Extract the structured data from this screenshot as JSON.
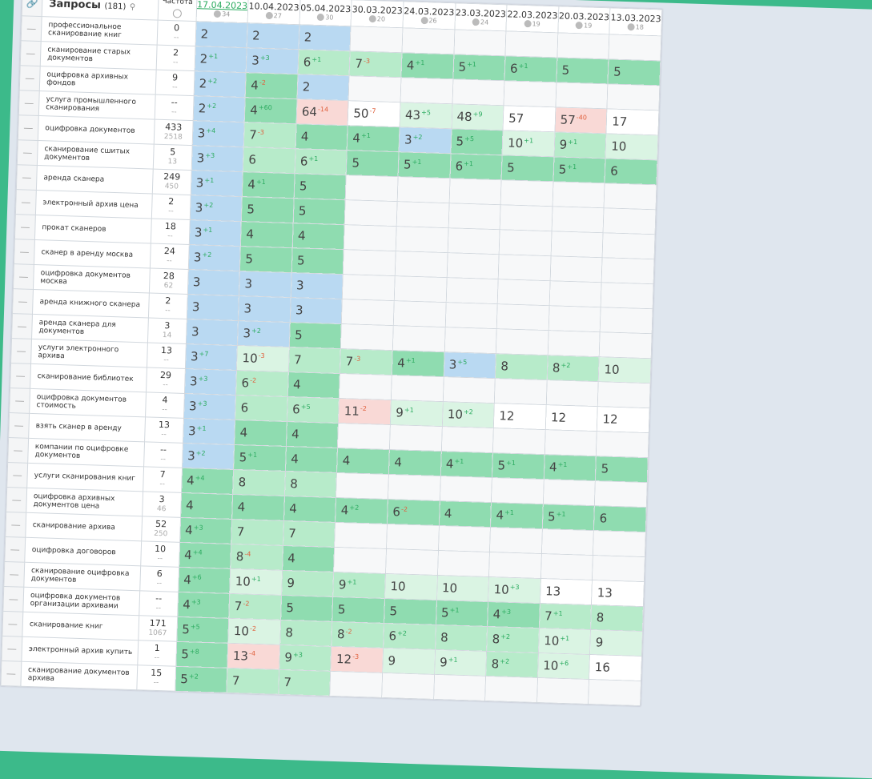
{
  "header": {
    "queries_label": "Запросы",
    "queries_count": "(181)",
    "frequency_label": "Частота",
    "dates": [
      {
        "date": "17.04.2023",
        "count": "34"
      },
      {
        "date": "10.04.2023",
        "count": "27"
      },
      {
        "date": "05.04.2023",
        "count": "30"
      },
      {
        "date": "30.03.2023",
        "count": "20"
      },
      {
        "date": "24.03.2023",
        "count": "26"
      },
      {
        "date": "23.03.2023",
        "count": "24"
      },
      {
        "date": "22.03.2023",
        "count": "19"
      },
      {
        "date": "20.03.2023",
        "count": "19"
      },
      {
        "date": "13.03.2023",
        "count": "18"
      }
    ]
  },
  "colors": {
    "blue": "#b9d9f2",
    "green": "#8fdcb0",
    "light_green": "#b7ebca",
    "pale_green": "#daf4e3",
    "red": "#f9d9d6",
    "delta_up": "#2bab5f",
    "delta_down": "#e0623f"
  },
  "rows": [
    {
      "q": "профессиональное сканирование книг",
      "f": "0",
      "f2": "--",
      "cells": [
        [
          "2",
          "",
          "b"
        ],
        [
          "2",
          "",
          "b"
        ],
        [
          "2",
          "",
          "b"
        ]
      ]
    },
    {
      "q": "сканирование старых документов",
      "f": "2",
      "f2": "--",
      "cells": [
        [
          "2",
          "+1",
          "b"
        ],
        [
          "3",
          "+3",
          "b"
        ],
        [
          "6",
          "+1",
          "l"
        ],
        [
          "7",
          "-3",
          "l"
        ],
        [
          "4",
          "+1",
          "g"
        ],
        [
          "5",
          "+1",
          "g"
        ],
        [
          "6",
          "+1",
          "g"
        ],
        [
          "5",
          "",
          "g"
        ],
        [
          "5",
          "",
          "g"
        ]
      ]
    },
    {
      "q": "оцифровка архивных фондов",
      "f": "9",
      "f2": "--",
      "cells": [
        [
          "2",
          "+2",
          "b"
        ],
        [
          "4",
          "-2",
          "g"
        ],
        [
          "2",
          "",
          "b"
        ]
      ]
    },
    {
      "q": "услуга промышленного сканирования",
      "f": "--",
      "f2": "--",
      "cells": [
        [
          "2",
          "+2",
          "b"
        ],
        [
          "4",
          "+60",
          "g"
        ],
        [
          "64",
          "-14",
          "r"
        ],
        [
          "50",
          "-7",
          "w"
        ],
        [
          "43",
          "+5",
          "p"
        ],
        [
          "48",
          "+9",
          "p"
        ],
        [
          "57",
          "",
          "w"
        ],
        [
          "57",
          "-40",
          "r"
        ],
        [
          "17",
          "",
          "w"
        ]
      ]
    },
    {
      "q": "оцифровка документов",
      "f": "433",
      "f2": "2518",
      "cells": [
        [
          "3",
          "+4",
          "b"
        ],
        [
          "7",
          "-3",
          "l"
        ],
        [
          "4",
          "",
          "g"
        ],
        [
          "4",
          "+1",
          "g"
        ],
        [
          "3",
          "+2",
          "b"
        ],
        [
          "5",
          "+5",
          "g"
        ],
        [
          "10",
          "+1",
          "p"
        ],
        [
          "9",
          "+1",
          "l"
        ],
        [
          "10",
          "",
          "p"
        ]
      ]
    },
    {
      "q": "сканирование сшитых документов",
      "f": "5",
      "f2": "13",
      "cells": [
        [
          "3",
          "+3",
          "b"
        ],
        [
          "6",
          "",
          "l"
        ],
        [
          "6",
          "+1",
          "l"
        ],
        [
          "5",
          "",
          "g"
        ],
        [
          "5",
          "+1",
          "g"
        ],
        [
          "6",
          "+1",
          "g"
        ],
        [
          "5",
          "",
          "g"
        ],
        [
          "5",
          "+1",
          "g"
        ],
        [
          "6",
          "",
          "g"
        ]
      ]
    },
    {
      "q": "аренда сканера",
      "f": "249",
      "f2": "450",
      "cells": [
        [
          "3",
          "+1",
          "b"
        ],
        [
          "4",
          "+1",
          "g"
        ],
        [
          "5",
          "",
          "g"
        ]
      ]
    },
    {
      "q": "электронный архив цена",
      "f": "2",
      "f2": "--",
      "cells": [
        [
          "3",
          "+2",
          "b"
        ],
        [
          "5",
          "",
          "g"
        ],
        [
          "5",
          "",
          "g"
        ]
      ]
    },
    {
      "q": "прокат сканеров",
      "f": "18",
      "f2": "--",
      "cells": [
        [
          "3",
          "+1",
          "b"
        ],
        [
          "4",
          "",
          "g"
        ],
        [
          "4",
          "",
          "g"
        ]
      ]
    },
    {
      "q": "сканер в аренду москва",
      "f": "24",
      "f2": "--",
      "cells": [
        [
          "3",
          "+2",
          "b"
        ],
        [
          "5",
          "",
          "g"
        ],
        [
          "5",
          "",
          "g"
        ]
      ]
    },
    {
      "q": "оцифровка документов москва",
      "f": "28",
      "f2": "62",
      "cells": [
        [
          "3",
          "",
          "b"
        ],
        [
          "3",
          "",
          "b"
        ],
        [
          "3",
          "",
          "b"
        ]
      ]
    },
    {
      "q": "аренда книжного сканера",
      "f": "2",
      "f2": "--",
      "cells": [
        [
          "3",
          "",
          "b"
        ],
        [
          "3",
          "",
          "b"
        ],
        [
          "3",
          "",
          "b"
        ]
      ]
    },
    {
      "q": "аренда сканера для документов",
      "f": "3",
      "f2": "14",
      "cells": [
        [
          "3",
          "",
          "b"
        ],
        [
          "3",
          "+2",
          "b"
        ],
        [
          "5",
          "",
          "g"
        ]
      ]
    },
    {
      "q": "услуги электронного архива",
      "f": "13",
      "f2": "--",
      "cells": [
        [
          "3",
          "+7",
          "b"
        ],
        [
          "10",
          "-3",
          "p"
        ],
        [
          "7",
          "",
          "l"
        ],
        [
          "7",
          "-3",
          "l"
        ],
        [
          "4",
          "+1",
          "g"
        ],
        [
          "3",
          "+5",
          "b"
        ],
        [
          "8",
          "",
          "l"
        ],
        [
          "8",
          "+2",
          "l"
        ],
        [
          "10",
          "",
          "p"
        ]
      ]
    },
    {
      "q": "сканирование библиотек",
      "f": "29",
      "f2": "--",
      "cells": [
        [
          "3",
          "+3",
          "b"
        ],
        [
          "6",
          "-2",
          "l"
        ],
        [
          "4",
          "",
          "g"
        ]
      ]
    },
    {
      "q": "оцифровка документов стоимость",
      "f": "4",
      "f2": "--",
      "cells": [
        [
          "3",
          "+3",
          "b"
        ],
        [
          "6",
          "",
          "l"
        ],
        [
          "6",
          "+5",
          "l"
        ],
        [
          "11",
          "-2",
          "r"
        ],
        [
          "9",
          "+1",
          "p"
        ],
        [
          "10",
          "+2",
          "p"
        ],
        [
          "12",
          "",
          "w"
        ],
        [
          "12",
          "",
          "w"
        ],
        [
          "12",
          "",
          "w"
        ]
      ]
    },
    {
      "q": "взять сканер в аренду",
      "f": "13",
      "f2": "--",
      "cells": [
        [
          "3",
          "+1",
          "b"
        ],
        [
          "4",
          "",
          "g"
        ],
        [
          "4",
          "",
          "g"
        ]
      ]
    },
    {
      "q": "компании по оцифровке документов",
      "f": "--",
      "f2": "--",
      "cells": [
        [
          "3",
          "+2",
          "b"
        ],
        [
          "5",
          "+1",
          "g"
        ],
        [
          "4",
          "",
          "g"
        ],
        [
          "4",
          "",
          "g"
        ],
        [
          "4",
          "",
          "g"
        ],
        [
          "4",
          "+1",
          "g"
        ],
        [
          "5",
          "+1",
          "g"
        ],
        [
          "4",
          "+1",
          "g"
        ],
        [
          "5",
          "",
          "g"
        ]
      ]
    },
    {
      "q": "услуги сканирования книг",
      "f": "7",
      "f2": "--",
      "cells": [
        [
          "4",
          "+4",
          "g"
        ],
        [
          "8",
          "",
          "l"
        ],
        [
          "8",
          "",
          "l"
        ]
      ]
    },
    {
      "q": "оцифровка архивных документов цена",
      "f": "3",
      "f2": "46",
      "cells": [
        [
          "4",
          "",
          "g"
        ],
        [
          "4",
          "",
          "g"
        ],
        [
          "4",
          "",
          "g"
        ],
        [
          "4",
          "+2",
          "g"
        ],
        [
          "6",
          "-2",
          "g"
        ],
        [
          "4",
          "",
          "g"
        ],
        [
          "4",
          "+1",
          "g"
        ],
        [
          "5",
          "+1",
          "g"
        ],
        [
          "6",
          "",
          "g"
        ]
      ]
    },
    {
      "q": "сканирование архива",
      "f": "52",
      "f2": "250",
      "cells": [
        [
          "4",
          "+3",
          "g"
        ],
        [
          "7",
          "",
          "l"
        ],
        [
          "7",
          "",
          "l"
        ]
      ]
    },
    {
      "q": "оцифровка договоров",
      "f": "10",
      "f2": "--",
      "cells": [
        [
          "4",
          "+4",
          "g"
        ],
        [
          "8",
          "-4",
          "l"
        ],
        [
          "4",
          "",
          "g"
        ]
      ]
    },
    {
      "q": "сканирование оцифровка документов",
      "f": "6",
      "f2": "--",
      "cells": [
        [
          "4",
          "+6",
          "g"
        ],
        [
          "10",
          "+1",
          "p"
        ],
        [
          "9",
          "",
          "l"
        ],
        [
          "9",
          "+1",
          "l"
        ],
        [
          "10",
          "",
          "p"
        ],
        [
          "10",
          "",
          "p"
        ],
        [
          "10",
          "+3",
          "p"
        ],
        [
          "13",
          "",
          "w"
        ],
        [
          "13",
          "",
          "w"
        ]
      ]
    },
    {
      "q": "оцифровка документов организации архивами",
      "f": "--",
      "f2": "--",
      "cells": [
        [
          "4",
          "+3",
          "g"
        ],
        [
          "7",
          "-2",
          "l"
        ],
        [
          "5",
          "",
          "g"
        ],
        [
          "5",
          "",
          "g"
        ],
        [
          "5",
          "",
          "g"
        ],
        [
          "5",
          "+1",
          "g"
        ],
        [
          "4",
          "+3",
          "g"
        ],
        [
          "7",
          "+1",
          "l"
        ],
        [
          "8",
          "",
          "l"
        ]
      ]
    },
    {
      "q": "сканирование книг",
      "f": "171",
      "f2": "1067",
      "cells": [
        [
          "5",
          "+5",
          "g"
        ],
        [
          "10",
          "-2",
          "p"
        ],
        [
          "8",
          "",
          "l"
        ],
        [
          "8",
          "-2",
          "l"
        ],
        [
          "6",
          "+2",
          "l"
        ],
        [
          "8",
          "",
          "l"
        ],
        [
          "8",
          "+2",
          "l"
        ],
        [
          "10",
          "+1",
          "p"
        ],
        [
          "9",
          "",
          "p"
        ]
      ]
    },
    {
      "q": "электронный архив купить",
      "f": "1",
      "f2": "--",
      "cells": [
        [
          "5",
          "+8",
          "g"
        ],
        [
          "13",
          "-4",
          "r"
        ],
        [
          "9",
          "+3",
          "l"
        ],
        [
          "12",
          "-3",
          "r"
        ],
        [
          "9",
          "",
          "p"
        ],
        [
          "9",
          "+1",
          "p"
        ],
        [
          "8",
          "+2",
          "l"
        ],
        [
          "10",
          "+6",
          "p"
        ],
        [
          "16",
          "",
          "w"
        ]
      ]
    },
    {
      "q": "сканирование документов архива",
      "f": "15",
      "f2": "--",
      "cells": [
        [
          "5",
          "+2",
          "g"
        ],
        [
          "7",
          "",
          "l"
        ],
        [
          "7",
          "",
          "l"
        ]
      ]
    }
  ]
}
